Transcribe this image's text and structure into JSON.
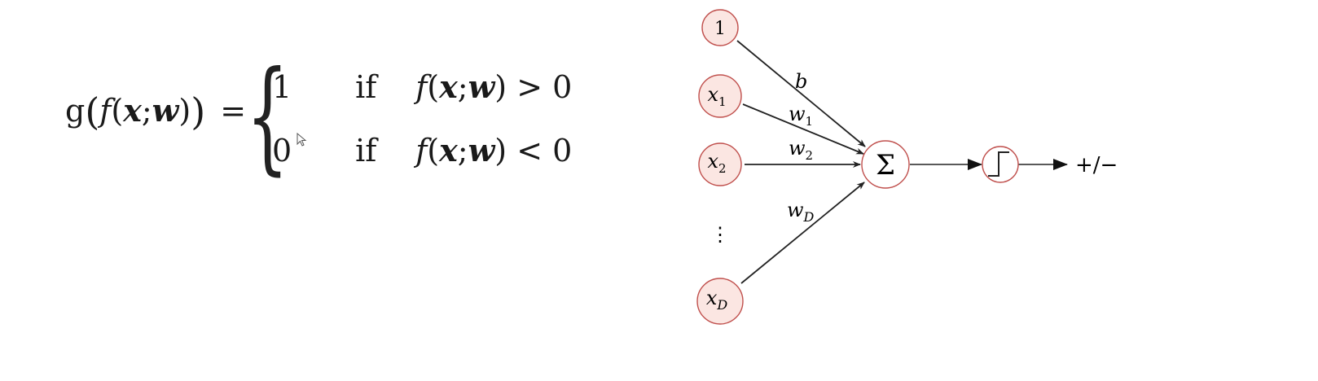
{
  "equation": {
    "lhs_func": "g",
    "lhs_open": "(",
    "lhs_inner_fn": "f",
    "lhs_args_open": "(",
    "lhs_x": "x",
    "lhs_sep": ";",
    "lhs_w": "w",
    "lhs_args_close": ")",
    "lhs_close": ")",
    "equals": "=",
    "cases": [
      {
        "value": "1",
        "if_word": "if",
        "fn": "f",
        "open": "(",
        "x": "x",
        "sep": ";",
        "w": "w",
        "close": ")",
        "relation": "> 0"
      },
      {
        "value": "0",
        "if_word": "if",
        "fn": "f",
        "open": "(",
        "x": "x",
        "sep": ";",
        "w": "w",
        "close": ")",
        "relation": "< 0"
      }
    ]
  },
  "diagram": {
    "inputs": {
      "bias": "1",
      "x1": {
        "base": "x",
        "sub": "1"
      },
      "x2": {
        "base": "x",
        "sub": "2"
      },
      "dots": "⋮",
      "xD": {
        "base": "x",
        "sub": "D"
      }
    },
    "weights": {
      "b": "b",
      "w1": {
        "base": "w",
        "sub": "1"
      },
      "w2": {
        "base": "w",
        "sub": "2"
      },
      "wD": {
        "base": "w",
        "sub": "D"
      }
    },
    "sum_symbol": "Σ",
    "output_label": "+/−",
    "colors": {
      "input_fill": "#fbe6e2",
      "input_stroke": "#c0504d",
      "edge": "#222222"
    }
  }
}
